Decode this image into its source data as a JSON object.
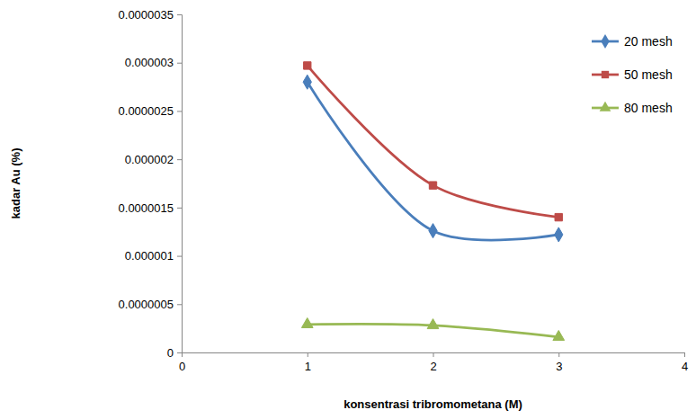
{
  "chart_data": {
    "type": "line",
    "x_label": "konsentrasi tribromometana (M)",
    "y_label": "kadar Au (%)",
    "x": [
      1,
      2,
      3
    ],
    "series": [
      {
        "name": "20 mesh",
        "color": "#4a7ebb",
        "marker": "diamond",
        "line_style": "smooth",
        "values": [
          2.8e-06,
          1.26e-06,
          1.22e-06
        ]
      },
      {
        "name": "50 mesh",
        "color": "#be4b48",
        "marker": "square",
        "line_style": "smooth",
        "values": [
          2.97e-06,
          1.73e-06,
          1.4e-06
        ]
      },
      {
        "name": "80 mesh",
        "color": "#98b954",
        "marker": "triangle",
        "line_style": "smooth",
        "values": [
          2.9e-07,
          2.8e-07,
          1.6e-07
        ]
      }
    ],
    "xlim": [
      0,
      4
    ],
    "xticks": [
      0,
      1,
      2,
      3,
      4
    ],
    "ylim": [
      0,
      3.5e-06
    ],
    "yticks": [
      0,
      {
        "value": 5e-07,
        "label": "0.0000005"
      },
      {
        "value": 1e-06,
        "label": "0.000001"
      },
      {
        "value": 1.5e-06,
        "label": "0.0000015"
      },
      {
        "value": 2e-06,
        "label": "0.000002"
      },
      {
        "value": 2.5e-06,
        "label": "0.0000025"
      },
      {
        "value": 3e-06,
        "label": "0.000003"
      },
      {
        "value": 3.5e-06,
        "label": "0.0000035"
      }
    ],
    "grid": false,
    "legend": "top-right"
  }
}
